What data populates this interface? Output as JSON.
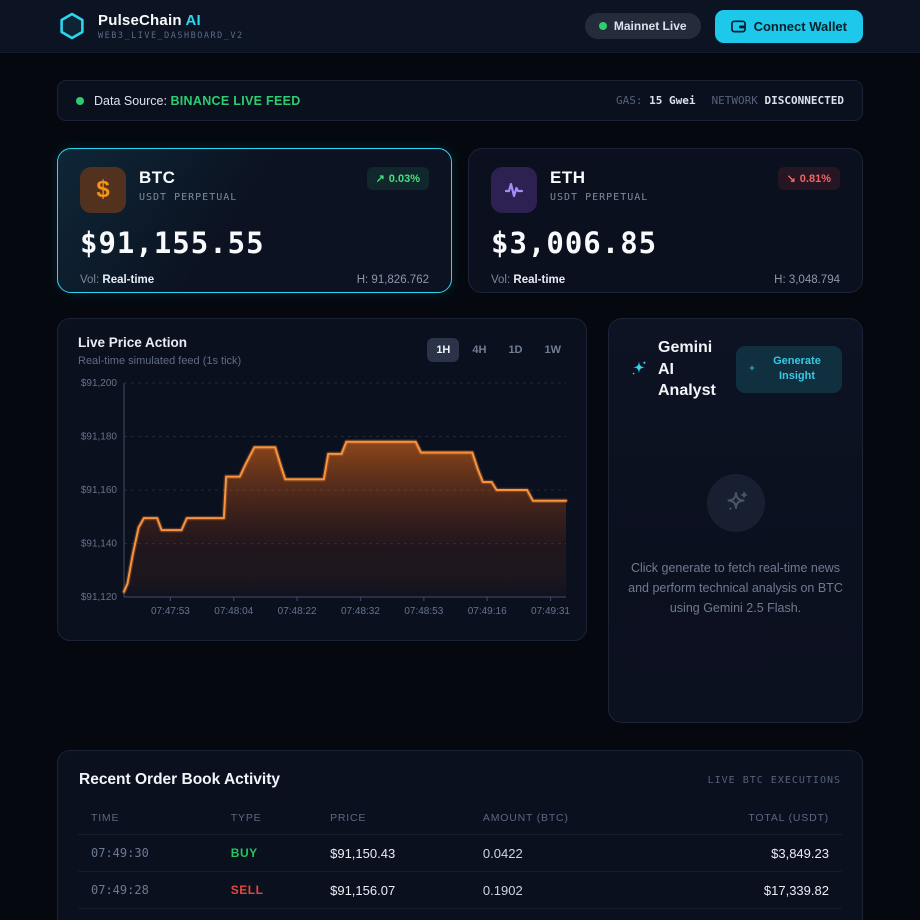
{
  "header": {
    "brand": "PulseChain",
    "brand_accent": "AI",
    "subtitle": "WEB3_LIVE_DASHBOARD_V2",
    "network_badge": "Mainnet Live",
    "connect_wallet": "Connect Wallet"
  },
  "status_bar": {
    "label": "Data Source:",
    "source": "BINANCE LIVE FEED",
    "gas_label": "GAS:",
    "gas_value": "15 Gwei",
    "network_label": "NETWORK",
    "network_value": "DISCONNECTED"
  },
  "tickers": [
    {
      "symbol": "BTC",
      "market": "USDT PERPETUAL",
      "price": "$91,155.55",
      "change_arrow": "↗",
      "change": "0.03%",
      "direction": "up",
      "vol_label": "Vol:",
      "vol_value": "Real-time",
      "high": "H: 91,826.762"
    },
    {
      "symbol": "ETH",
      "market": "USDT PERPETUAL",
      "price": "$3,006.85",
      "change_arrow": "↘",
      "change": "0.81%",
      "direction": "down",
      "vol_label": "Vol:",
      "vol_value": "Real-time",
      "high": "H: 3,048.794"
    }
  ],
  "chart_card": {
    "title": "Live Price Action",
    "subtitle": "Real-time simulated feed (1s tick)",
    "ranges": [
      "1H",
      "4H",
      "1D",
      "1W"
    ],
    "active_range": "1H"
  },
  "chart_data": {
    "type": "area",
    "title": "Live Price Action",
    "ylim": [
      91120,
      91200
    ],
    "y_ticks": [
      91120,
      91140,
      91160,
      91180,
      91200
    ],
    "x_labels": [
      "07:47:53",
      "07:48:04",
      "07:48:22",
      "07:48:32",
      "07:48:53",
      "07:49:16",
      "07:49:31"
    ],
    "grid": "horizontal-dashed",
    "legend": "none",
    "line_color": "#fb923c",
    "fill_color": "#f97316",
    "points": [
      {
        "x": 0.0,
        "y": 91122.0
      },
      {
        "x": 0.008,
        "y": 91125.0
      },
      {
        "x": 0.02,
        "y": 91136.0
      },
      {
        "x": 0.033,
        "y": 91146.0
      },
      {
        "x": 0.045,
        "y": 91149.5
      },
      {
        "x": 0.075,
        "y": 91149.5
      },
      {
        "x": 0.085,
        "y": 91145.0
      },
      {
        "x": 0.13,
        "y": 91145.0
      },
      {
        "x": 0.142,
        "y": 91149.5
      },
      {
        "x": 0.226,
        "y": 91149.5
      },
      {
        "x": 0.231,
        "y": 91165.0
      },
      {
        "x": 0.262,
        "y": 91165.0
      },
      {
        "x": 0.276,
        "y": 91170.0
      },
      {
        "x": 0.295,
        "y": 91176.0
      },
      {
        "x": 0.342,
        "y": 91176.0
      },
      {
        "x": 0.355,
        "y": 91169.0
      },
      {
        "x": 0.365,
        "y": 91164.0
      },
      {
        "x": 0.452,
        "y": 91164.0
      },
      {
        "x": 0.462,
        "y": 91173.5
      },
      {
        "x": 0.492,
        "y": 91173.5
      },
      {
        "x": 0.503,
        "y": 91178.0
      },
      {
        "x": 0.66,
        "y": 91178.0
      },
      {
        "x": 0.672,
        "y": 91174.0
      },
      {
        "x": 0.788,
        "y": 91174.0
      },
      {
        "x": 0.8,
        "y": 91168.0
      },
      {
        "x": 0.812,
        "y": 91163.0
      },
      {
        "x": 0.832,
        "y": 91163.0
      },
      {
        "x": 0.843,
        "y": 91160.0
      },
      {
        "x": 0.912,
        "y": 91160.0
      },
      {
        "x": 0.925,
        "y": 91156.0
      },
      {
        "x": 1.0,
        "y": 91156.0
      }
    ]
  },
  "gemini": {
    "title": "Gemini AI Analyst",
    "button": "Generate Insight",
    "empty_text": "Click generate to fetch real-time news and perform technical analysis on BTC using Gemini 2.5 Flash."
  },
  "order_book": {
    "title": "Recent Order Book Activity",
    "tag": "LIVE BTC EXECUTIONS",
    "columns": [
      "TIME",
      "TYPE",
      "PRICE",
      "AMOUNT (BTC)",
      "TOTAL (USDT)"
    ],
    "rows": [
      {
        "time": "07:49:30",
        "type": "BUY",
        "price": "$91,150.43",
        "amount": "0.0422",
        "total": "$3,849.23"
      },
      {
        "time": "07:49:28",
        "type": "SELL",
        "price": "$91,156.07",
        "amount": "0.1902",
        "total": "$17,339.82"
      }
    ]
  },
  "colors": {
    "accent_cyan": "#2bd6f0",
    "up_green": "#22c55e",
    "down_red": "#ef4444",
    "chart_orange": "#f97316",
    "page_bg": "#05080f",
    "card_bg": "#0b101f"
  }
}
